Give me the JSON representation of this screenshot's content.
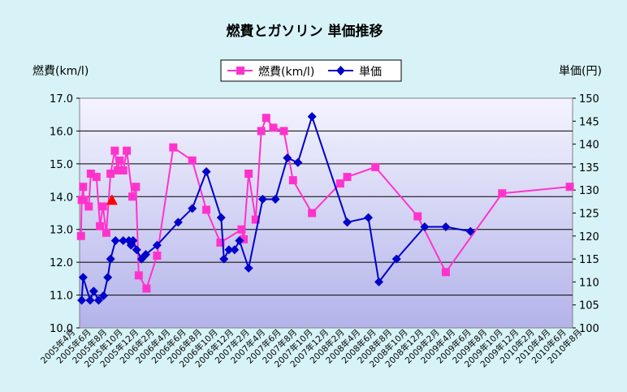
{
  "chart_data": {
    "type": "line",
    "title": "燃費とガソリン 単価推移",
    "ylabel_left": "燃費(km/l)",
    "ylabel_right": "単価(円)",
    "ylim_left": [
      10.0,
      17.0
    ],
    "ylim_right": [
      100,
      150
    ],
    "yticks_left": [
      "10.0",
      "11.0",
      "12.0",
      "13.0",
      "14.0",
      "15.0",
      "16.0",
      "17.0"
    ],
    "yticks_right": [
      "100",
      "105",
      "110",
      "115",
      "120",
      "125",
      "130",
      "135",
      "140",
      "145",
      "150"
    ],
    "x_range": [
      0,
      70
    ],
    "x_tick_labels": [
      "2005年4月",
      "2005年6月",
      "2005年8月",
      "2005年10月",
      "2005年12月",
      "2006年2月",
      "2006年4月",
      "2006年6月",
      "2006年8月",
      "2006年10月",
      "2006年12月",
      "2007年2月",
      "2007年4月",
      "2007年6月",
      "2007年8月",
      "2007年10月",
      "2007年12月",
      "2008年2月",
      "2008年4月",
      "2008年6月",
      "2008年8月",
      "2008年10月",
      "2008年12月",
      "2009年2月",
      "2009年4月",
      "2009年6月",
      "2009年8月",
      "2009年10月",
      "2009年12月",
      "2010年2月",
      "2010年4月",
      "2010年6月",
      "2010年8月"
    ],
    "grid": true,
    "legend_position": "top-center",
    "series": [
      {
        "name": "燃費(km/l)",
        "axis": "left",
        "color": "#ff33cc",
        "marker": "square",
        "x": [
          0.2,
          0.3,
          0.5,
          0.6,
          1.3,
          1.6,
          2.4,
          2.9,
          3.3,
          3.8,
          4.4,
          5.0,
          5.4,
          5.7,
          6.2,
          6.7,
          7.5,
          8.0,
          8.4,
          9.5,
          11.0,
          13.3,
          16.0,
          18.0,
          20.0,
          23.0,
          23.3,
          24.0,
          25.0,
          25.8,
          26.5,
          27.5,
          29.0,
          30.3,
          33.0,
          37.0,
          38.0,
          42.0,
          48.0,
          52.0,
          60.0,
          69.6
        ],
        "y": [
          12.8,
          13.9,
          14.3,
          13.9,
          13.7,
          14.7,
          14.6,
          13.1,
          13.7,
          12.9,
          14.7,
          15.4,
          14.8,
          15.1,
          14.8,
          15.4,
          14.0,
          14.3,
          11.6,
          11.2,
          12.2,
          15.5,
          15.1,
          13.6,
          12.6,
          13.0,
          12.7,
          14.7,
          13.3,
          16.0,
          16.4,
          16.1,
          16.0,
          14.5,
          13.5,
          14.4,
          14.6,
          14.9,
          13.4,
          11.7,
          14.1,
          14.3
        ]
      },
      {
        "name": "単価",
        "axis": "right",
        "color": "#0000cc",
        "marker": "diamond",
        "x": [
          0.3,
          0.5,
          1.5,
          2.0,
          2.7,
          3.4,
          4.0,
          4.4,
          5.1,
          6.2,
          7.0,
          7.3,
          7.6,
          8.1,
          8.8,
          9.4,
          11.0,
          14.0,
          16.0,
          18.0,
          20.1,
          20.5,
          21.2,
          22.0,
          22.7,
          24.0,
          26.0,
          27.8,
          29.5,
          31.0,
          33.0,
          38.0,
          41.0,
          42.5,
          45.0,
          49.0,
          52.0,
          55.5
        ],
        "y": [
          106,
          111,
          106,
          108,
          106,
          107,
          111,
          115,
          119,
          119,
          119,
          118,
          119,
          117,
          115,
          116,
          118,
          123,
          126,
          134,
          124,
          115,
          117,
          117,
          119,
          113,
          128,
          128,
          137,
          136,
          146,
          123,
          124,
          110,
          115,
          122,
          122,
          121
        ],
        "x_extra_note": ""
      }
    ],
    "annotations": [
      {
        "marker": "triangle",
        "color": "#ff0000",
        "x": 4.6,
        "y_left": 13.9
      }
    ]
  },
  "legend": {
    "item1": "燃費(km/l)",
    "item2": "単価"
  }
}
